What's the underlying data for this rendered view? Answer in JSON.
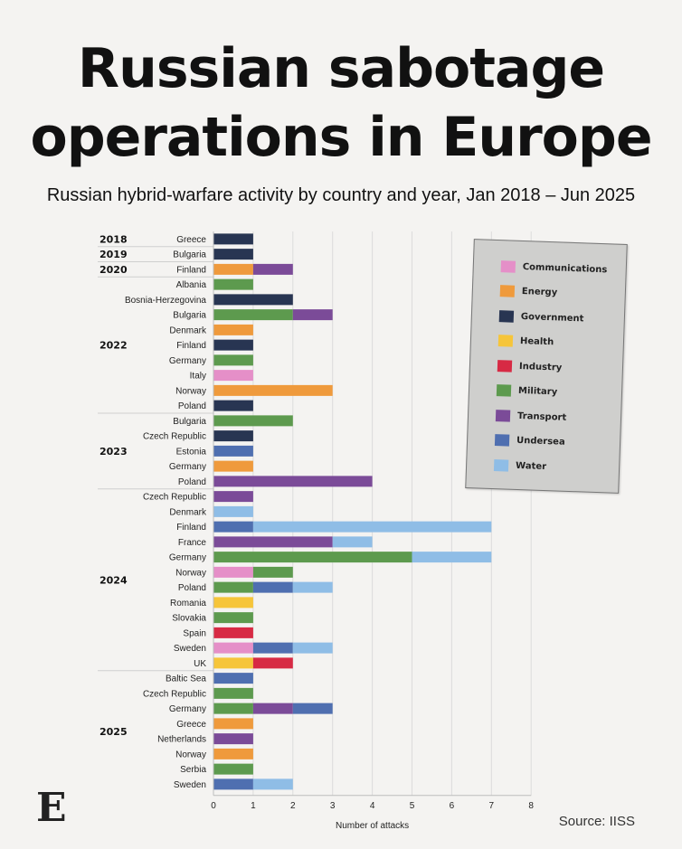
{
  "header": {
    "title_line1": "Russian sabotage",
    "title_line2": "operations in Europe",
    "subtitle": "Russian hybrid-warfare activity by country and year, Jan 2018 – Jun 2025"
  },
  "footer": {
    "source": "Source: IISS",
    "logo_letter": "E"
  },
  "colors": {
    "Communications": "#e58fc8",
    "Energy": "#ef9a3c",
    "Government": "#283552",
    "Health": "#f6c53a",
    "Industry": "#d72a44",
    "Military": "#5d9a4e",
    "Transport": "#7b4b98",
    "Undersea": "#4f6fb0",
    "Water": "#8fbde6"
  },
  "chart_data": {
    "type": "bar",
    "orientation": "horizontal",
    "stacked": true,
    "xlabel": "Number of attacks",
    "xlim": [
      0,
      8
    ],
    "xticks": [
      "0",
      "1",
      "2",
      "3",
      "4",
      "5",
      "6",
      "7",
      "8"
    ],
    "grid": true,
    "legend_position": "top-right",
    "legend": [
      "Communications",
      "Energy",
      "Government",
      "Health",
      "Industry",
      "Military",
      "Transport",
      "Undersea",
      "Water"
    ],
    "groups": [
      {
        "year": "2018",
        "rows": [
          {
            "country": "Greece",
            "segments": [
              [
                "Government",
                1
              ]
            ]
          }
        ]
      },
      {
        "year": "2019",
        "rows": [
          {
            "country": "Bulgaria",
            "segments": [
              [
                "Government",
                1
              ]
            ]
          }
        ]
      },
      {
        "year": "2020",
        "rows": [
          {
            "country": "Finland",
            "segments": [
              [
                "Energy",
                1
              ],
              [
                "Transport",
                1
              ]
            ]
          }
        ]
      },
      {
        "year": "2022",
        "rows": [
          {
            "country": "Albania",
            "segments": [
              [
                "Military",
                1
              ]
            ]
          },
          {
            "country": "Bosnia-Herzegovina",
            "segments": [
              [
                "Government",
                2
              ]
            ]
          },
          {
            "country": "Bulgaria",
            "segments": [
              [
                "Military",
                2
              ],
              [
                "Transport",
                1
              ]
            ]
          },
          {
            "country": "Denmark",
            "segments": [
              [
                "Energy",
                1
              ]
            ]
          },
          {
            "country": "Finland",
            "segments": [
              [
                "Government",
                1
              ]
            ]
          },
          {
            "country": "Germany",
            "segments": [
              [
                "Military",
                1
              ]
            ]
          },
          {
            "country": "Italy",
            "segments": [
              [
                "Communications",
                1
              ]
            ]
          },
          {
            "country": "Norway",
            "segments": [
              [
                "Energy",
                3
              ]
            ]
          },
          {
            "country": "Poland",
            "segments": [
              [
                "Government",
                1
              ]
            ]
          }
        ]
      },
      {
        "year": "2023",
        "rows": [
          {
            "country": "Bulgaria",
            "segments": [
              [
                "Military",
                2
              ]
            ]
          },
          {
            "country": "Czech Republic",
            "segments": [
              [
                "Government",
                1
              ]
            ]
          },
          {
            "country": "Estonia",
            "segments": [
              [
                "Undersea",
                1
              ]
            ]
          },
          {
            "country": "Germany",
            "segments": [
              [
                "Energy",
                1
              ]
            ]
          },
          {
            "country": "Poland",
            "segments": [
              [
                "Transport",
                4
              ]
            ]
          }
        ]
      },
      {
        "year": "2024",
        "rows": [
          {
            "country": "Czech Republic",
            "segments": [
              [
                "Transport",
                1
              ]
            ]
          },
          {
            "country": "Denmark",
            "segments": [
              [
                "Water",
                1
              ]
            ]
          },
          {
            "country": "Finland",
            "segments": [
              [
                "Undersea",
                1
              ],
              [
                "Water",
                6
              ]
            ]
          },
          {
            "country": "France",
            "segments": [
              [
                "Transport",
                3
              ],
              [
                "Water",
                1
              ]
            ]
          },
          {
            "country": "Germany",
            "segments": [
              [
                "Military",
                5
              ],
              [
                "Water",
                2
              ]
            ]
          },
          {
            "country": "Norway",
            "segments": [
              [
                "Communications",
                1
              ],
              [
                "Military",
                1
              ]
            ]
          },
          {
            "country": "Poland",
            "segments": [
              [
                "Military",
                1
              ],
              [
                "Undersea",
                1
              ],
              [
                "Water",
                1
              ]
            ]
          },
          {
            "country": "Romania",
            "segments": [
              [
                "Health",
                1
              ]
            ]
          },
          {
            "country": "Slovakia",
            "segments": [
              [
                "Military",
                1
              ]
            ]
          },
          {
            "country": "Spain",
            "segments": [
              [
                "Industry",
                1
              ]
            ]
          },
          {
            "country": "Sweden",
            "segments": [
              [
                "Communications",
                1
              ],
              [
                "Undersea",
                1
              ],
              [
                "Water",
                1
              ]
            ]
          },
          {
            "country": "UK",
            "segments": [
              [
                "Health",
                1
              ],
              [
                "Industry",
                1
              ]
            ]
          }
        ]
      },
      {
        "year": "2025",
        "rows": [
          {
            "country": "Baltic Sea",
            "segments": [
              [
                "Undersea",
                1
              ]
            ]
          },
          {
            "country": "Czech Republic",
            "segments": [
              [
                "Military",
                1
              ]
            ]
          },
          {
            "country": "Germany",
            "segments": [
              [
                "Military",
                1
              ],
              [
                "Transport",
                1
              ],
              [
                "Undersea",
                1
              ]
            ]
          },
          {
            "country": "Greece",
            "segments": [
              [
                "Energy",
                1
              ]
            ]
          },
          {
            "country": "Netherlands",
            "segments": [
              [
                "Transport",
                1
              ]
            ]
          },
          {
            "country": "Norway",
            "segments": [
              [
                "Energy",
                1
              ]
            ]
          },
          {
            "country": "Serbia",
            "segments": [
              [
                "Military",
                1
              ]
            ]
          },
          {
            "country": "Sweden",
            "segments": [
              [
                "Undersea",
                1
              ],
              [
                "Water",
                1
              ]
            ]
          }
        ]
      }
    ]
  }
}
